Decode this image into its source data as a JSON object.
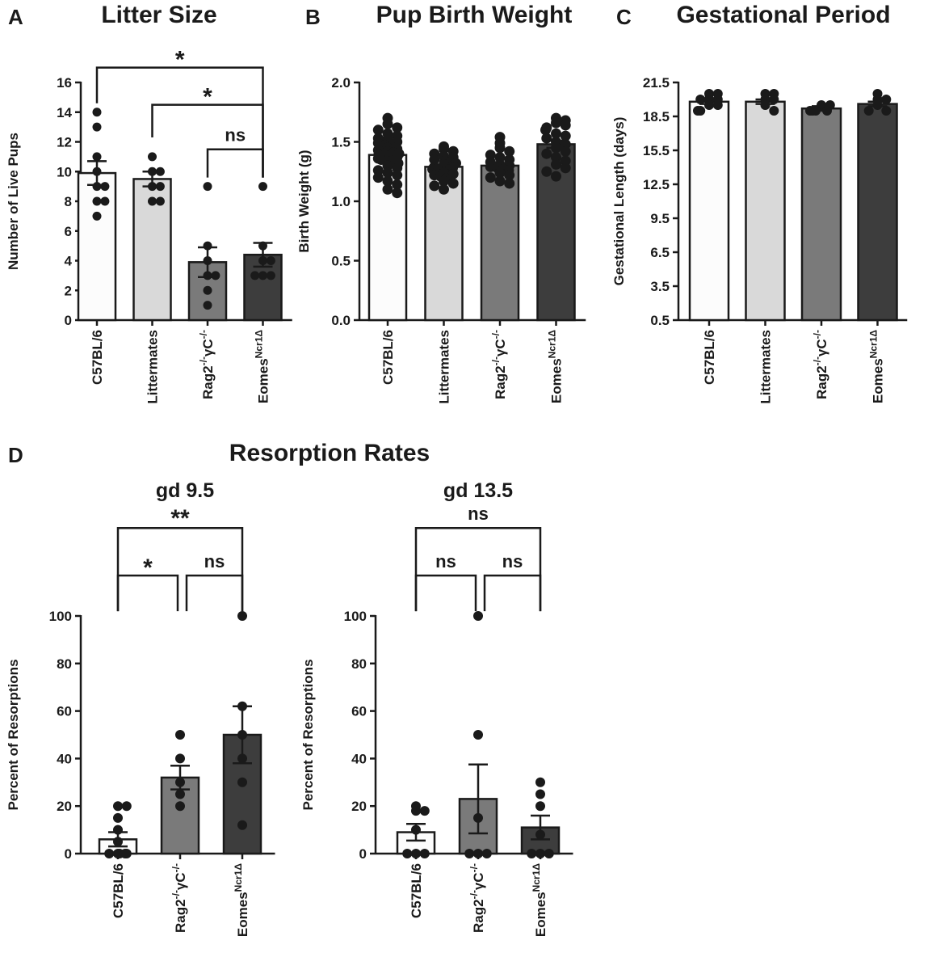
{
  "panels": {
    "A": {
      "letter": "A",
      "title": "Litter Size"
    },
    "B": {
      "letter": "B",
      "title": "Pup Birth Weight"
    },
    "C": {
      "letter": "C",
      "title": "Gestational Period"
    },
    "D": {
      "letter": "D",
      "title": "Resorption Rates"
    }
  },
  "colors": {
    "bar_c57": "#fcfcfc",
    "bar_litter": "#d9d9d9",
    "bar_rag": "#7a7a7a",
    "bar_eomes": "#3d3d3d",
    "ink": "#1a1a1a"
  },
  "chart_data": [
    {
      "id": "A",
      "type": "bar",
      "title": "Litter Size",
      "ylabel": "Number of Live Pups",
      "ylim": [
        0,
        16
      ],
      "yticks": [
        "0",
        "2",
        "4",
        "6",
        "8",
        "10",
        "12",
        "14",
        "16"
      ],
      "categories": [
        {
          "main": "C57BL/6"
        },
        {
          "main": "Littermates"
        },
        {
          "main": "Rag2",
          "sup": "-/-",
          "mid": "γC",
          "sup2": "-/-"
        },
        {
          "main": "Eomes",
          "sup": "Ncr1Δ"
        }
      ],
      "values": [
        9.9,
        9.5,
        3.9,
        4.4
      ],
      "errors": [
        0.8,
        0.5,
        1.0,
        0.8
      ],
      "points": [
        [
          14,
          13,
          11,
          10,
          9,
          9,
          8,
          7,
          8
        ],
        [
          11,
          10,
          10,
          9,
          9,
          8,
          8
        ],
        [
          9,
          5,
          4,
          3,
          3,
          2,
          1
        ],
        [
          9,
          5,
          4,
          4,
          3,
          3,
          3
        ]
      ],
      "significance": [
        {
          "from": 0,
          "to": 3,
          "label": "*",
          "y": 17.0
        },
        {
          "from": 1,
          "to": 3,
          "label": "*",
          "y": 14.5
        },
        {
          "from": 2,
          "to": 3,
          "label": "ns",
          "y": 11.5
        }
      ]
    },
    {
      "id": "B",
      "type": "bar",
      "title": "Pup Birth Weight",
      "ylabel": "Birth Weight (g)",
      "ylim": [
        0,
        2.0
      ],
      "yticks": [
        "0.0",
        "0.5",
        "1.0",
        "1.5",
        "2.0"
      ],
      "categories": [
        {
          "main": "C57BL/6"
        },
        {
          "main": "Littermates"
        },
        {
          "main": "Rag2",
          "sup": "-/-",
          "mid": "γC",
          "sup2": "-/-"
        },
        {
          "main": "Eomes",
          "sup": "Ncr1Δ"
        }
      ],
      "values": [
        1.39,
        1.29,
        1.3,
        1.48
      ],
      "errors": [
        0.02,
        0.01,
        0.02,
        0.03
      ],
      "points": [
        [
          1.7,
          1.65,
          1.62,
          1.6,
          1.57,
          1.55,
          1.53,
          1.52,
          1.5,
          1.49,
          1.48,
          1.47,
          1.46,
          1.45,
          1.44,
          1.43,
          1.42,
          1.41,
          1.4,
          1.4,
          1.39,
          1.38,
          1.37,
          1.36,
          1.35,
          1.34,
          1.33,
          1.32,
          1.3,
          1.28,
          1.26,
          1.24,
          1.22,
          1.2,
          1.17,
          1.14,
          1.1,
          1.07
        ],
        [
          1.46,
          1.44,
          1.42,
          1.4,
          1.38,
          1.37,
          1.35,
          1.34,
          1.33,
          1.32,
          1.31,
          1.3,
          1.29,
          1.28,
          1.27,
          1.26,
          1.25,
          1.24,
          1.23,
          1.22,
          1.21,
          1.19,
          1.17,
          1.15,
          1.13,
          1.1
        ],
        [
          1.54,
          1.49,
          1.45,
          1.42,
          1.39,
          1.37,
          1.35,
          1.33,
          1.31,
          1.3,
          1.29,
          1.28,
          1.27,
          1.26,
          1.24,
          1.22,
          1.2,
          1.17,
          1.15
        ],
        [
          1.7,
          1.68,
          1.66,
          1.64,
          1.62,
          1.6,
          1.57,
          1.55,
          1.53,
          1.5,
          1.48,
          1.45,
          1.42,
          1.4,
          1.37,
          1.34,
          1.31,
          1.28,
          1.25,
          1.21
        ]
      ],
      "significance": []
    },
    {
      "id": "C",
      "type": "bar",
      "title": "Gestational Period",
      "ylabel": "Gestational Length (days)",
      "ylim": [
        0.5,
        21.5
      ],
      "yticks": [
        "0.5",
        "3.5",
        "6.5",
        "9.5",
        "12.5",
        "15.5",
        "18.5",
        "21.5"
      ],
      "categories": [
        {
          "main": "C57BL/6"
        },
        {
          "main": "Littermates"
        },
        {
          "main": "Rag2",
          "sup": "-/-",
          "mid": "γC",
          "sup2": "-/-"
        },
        {
          "main": "Eomes",
          "sup": "Ncr1Δ"
        }
      ],
      "values": [
        19.8,
        19.8,
        19.2,
        19.6
      ],
      "errors": [
        0.2,
        0.2,
        0.2,
        0.2
      ],
      "points": [
        [
          20.5,
          20.5,
          20.0,
          20.0,
          20.0,
          19.5,
          19.5,
          19.0,
          19.0
        ],
        [
          20.5,
          20.5,
          20.0,
          20.0,
          19.5,
          19.0
        ],
        [
          19.5,
          19.5,
          19.0,
          19.0,
          19.0,
          19.0
        ],
        [
          20.5,
          20.0,
          20.0,
          19.5,
          19.0,
          19.0
        ]
      ],
      "significance": []
    },
    {
      "id": "D1",
      "type": "bar",
      "title": "gd 9.5",
      "ylabel": "Percent of Resorptions",
      "ylim": [
        0,
        100
      ],
      "yticks": [
        "0",
        "20",
        "40",
        "60",
        "80",
        "100"
      ],
      "categories": [
        {
          "main": "C57BL/6"
        },
        {
          "main": "Rag2",
          "sup": "-/-",
          "mid": "γC",
          "sup2": "-/-"
        },
        {
          "main": "Eomes",
          "sup": "Ncr1Δ"
        }
      ],
      "values": [
        6,
        32,
        50
      ],
      "errors": [
        3,
        5,
        12
      ],
      "points": [
        [
          20,
          20,
          15,
          10,
          5,
          0,
          0,
          0,
          0,
          0
        ],
        [
          50,
          40,
          30,
          25,
          20
        ],
        [
          100,
          62,
          50,
          40,
          30,
          12
        ]
      ],
      "significance": [
        {
          "from": 0,
          "to": 2,
          "label": "**",
          "y": 137
        },
        {
          "from": 0,
          "to": 1,
          "label": "*",
          "y": 117
        },
        {
          "from": 1,
          "to": 2,
          "label": "ns",
          "y": 117
        }
      ]
    },
    {
      "id": "D2",
      "type": "bar",
      "title": "gd 13.5",
      "ylabel": "Percent of Resorptions",
      "ylim": [
        0,
        100
      ],
      "yticks": [
        "0",
        "20",
        "40",
        "60",
        "80",
        "100"
      ],
      "categories": [
        {
          "main": "C57BL/6"
        },
        {
          "main": "Rag2",
          "sup": "-/-",
          "mid": "γC",
          "sup2": "-/-"
        },
        {
          "main": "Eomes",
          "sup": "Ncr1Δ"
        }
      ],
      "values": [
        9,
        23,
        11
      ],
      "errors": [
        3.5,
        14.5,
        5
      ],
      "points": [
        [
          20,
          18,
          18,
          10,
          0,
          0,
          0
        ],
        [
          100,
          50,
          15,
          0,
          0,
          0
        ],
        [
          30,
          25,
          20,
          8,
          0,
          0,
          0
        ]
      ],
      "significance": [
        {
          "from": 0,
          "to": 2,
          "label": "ns",
          "y": 137
        },
        {
          "from": 0,
          "to": 1,
          "label": "ns",
          "y": 117
        },
        {
          "from": 1,
          "to": 2,
          "label": "ns",
          "y": 117
        }
      ]
    }
  ]
}
